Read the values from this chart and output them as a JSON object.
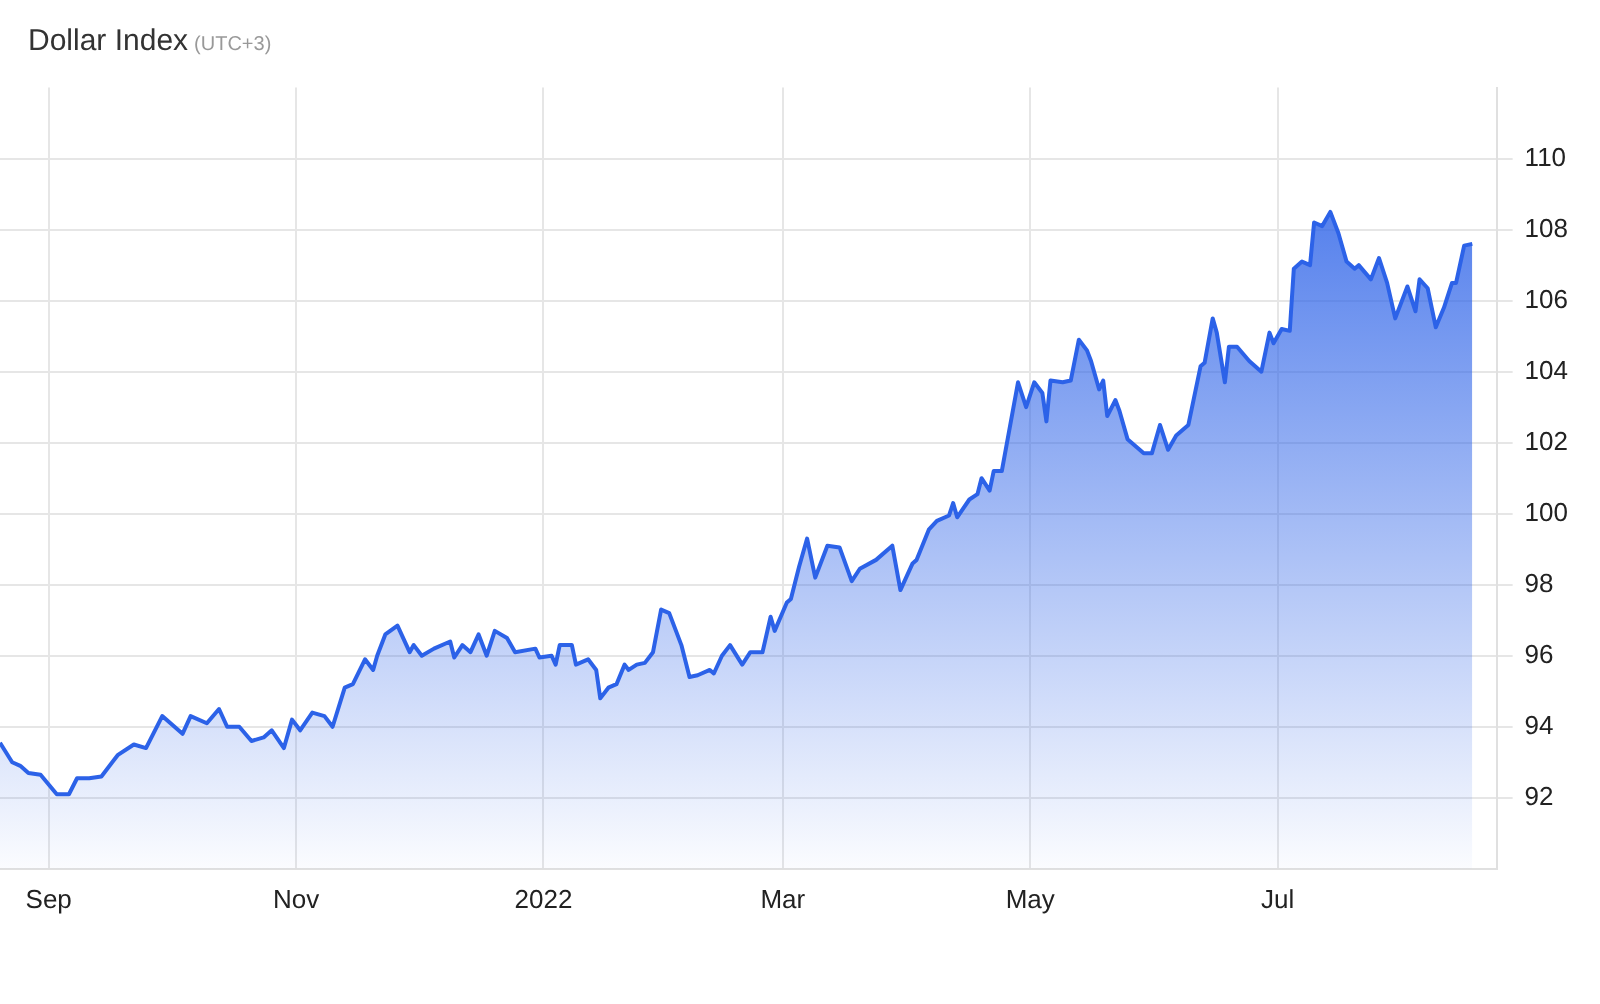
{
  "chart_data": {
    "type": "area",
    "title": "Dollar Index",
    "subtitle": "(UTC+3)",
    "x": [
      "2021-08-20",
      "2021-08-23",
      "2021-08-25",
      "2021-08-27",
      "2021-08-30",
      "2021-09-03",
      "2021-09-06",
      "2021-09-08",
      "2021-09-11",
      "2021-09-14",
      "2021-09-18",
      "2021-09-22",
      "2021-09-25",
      "2021-09-29",
      "2021-10-04",
      "2021-10-06",
      "2021-10-10",
      "2021-10-13",
      "2021-10-15",
      "2021-10-18",
      "2021-10-21",
      "2021-10-24",
      "2021-10-26",
      "2021-10-29",
      "2021-10-31",
      "2021-11-02",
      "2021-11-05",
      "2021-11-08",
      "2021-11-10",
      "2021-11-13",
      "2021-11-15",
      "2021-11-18",
      "2021-11-20",
      "2021-11-21",
      "2021-11-23",
      "2021-11-26",
      "2021-11-29",
      "2021-11-30",
      "2021-12-02",
      "2021-12-05",
      "2021-12-09",
      "2021-12-10",
      "2021-12-12",
      "2021-12-14",
      "2021-12-16",
      "2021-12-18",
      "2021-12-20",
      "2021-12-23",
      "2021-12-25",
      "2021-12-30",
      "2021-12-31",
      "2022-01-03",
      "2022-01-04",
      "2022-01-05",
      "2022-01-08",
      "2022-01-09",
      "2022-01-12",
      "2022-01-14",
      "2022-01-15",
      "2022-01-17",
      "2022-01-19",
      "2022-01-21",
      "2022-01-22",
      "2022-01-24",
      "2022-01-26",
      "2022-01-28",
      "2022-01-30",
      "2022-02-01",
      "2022-02-04",
      "2022-02-06",
      "2022-02-08",
      "2022-02-11",
      "2022-02-12",
      "2022-02-14",
      "2022-02-16",
      "2022-02-19",
      "2022-02-21",
      "2022-02-24",
      "2022-02-26",
      "2022-02-27",
      "2022-03-02",
      "2022-03-03",
      "2022-03-05",
      "2022-03-07",
      "2022-03-09",
      "2022-03-12",
      "2022-03-15",
      "2022-03-18",
      "2022-03-20",
      "2022-03-24",
      "2022-03-28",
      "2022-03-30",
      "2022-04-02",
      "2022-04-03",
      "2022-04-06",
      "2022-04-08",
      "2022-04-11",
      "2022-04-12",
      "2022-04-13",
      "2022-04-16",
      "2022-04-18",
      "2022-04-19",
      "2022-04-21",
      "2022-04-22",
      "2022-04-24",
      "2022-04-28",
      "2022-04-30",
      "2022-05-02",
      "2022-05-04",
      "2022-05-05",
      "2022-05-06",
      "2022-05-09",
      "2022-05-11",
      "2022-05-13",
      "2022-05-15",
      "2022-05-16",
      "2022-05-18",
      "2022-05-19",
      "2022-05-20",
      "2022-05-22",
      "2022-05-23",
      "2022-05-25",
      "2022-05-26",
      "2022-05-29",
      "2022-05-31",
      "2022-06-02",
      "2022-06-04",
      "2022-06-06",
      "2022-06-09",
      "2022-06-12",
      "2022-06-13",
      "2022-06-15",
      "2022-06-16",
      "2022-06-18",
      "2022-06-19",
      "2022-06-21",
      "2022-06-24",
      "2022-06-27",
      "2022-06-29",
      "2022-06-30",
      "2022-07-02",
      "2022-07-04",
      "2022-07-05",
      "2022-07-07",
      "2022-07-09",
      "2022-07-10",
      "2022-07-12",
      "2022-07-14",
      "2022-07-16",
      "2022-07-18",
      "2022-07-20",
      "2022-07-21",
      "2022-07-24",
      "2022-07-26",
      "2022-07-28",
      "2022-07-30",
      "2022-08-02",
      "2022-08-04",
      "2022-08-05",
      "2022-08-07",
      "2022-08-09",
      "2022-08-11",
      "2022-08-13",
      "2022-08-14",
      "2022-08-16",
      "2022-08-18"
    ],
    "series": [
      {
        "color": "#2c62e8",
        "values": [
          93.55,
          93.0,
          92.9,
          92.7,
          92.65,
          92.1,
          92.1,
          92.55,
          92.55,
          92.6,
          93.2,
          93.5,
          93.4,
          94.3,
          93.8,
          94.3,
          94.1,
          94.5,
          94.0,
          94.0,
          93.6,
          93.7,
          93.9,
          93.4,
          94.2,
          93.9,
          94.4,
          94.3,
          94.0,
          95.1,
          95.2,
          95.9,
          95.6,
          96.0,
          96.6,
          96.85,
          96.1,
          96.3,
          96.0,
          96.2,
          96.4,
          95.95,
          96.3,
          96.1,
          96.6,
          96.0,
          96.7,
          96.5,
          96.1,
          96.2,
          95.95,
          96.0,
          95.75,
          96.3,
          96.3,
          95.75,
          95.9,
          95.6,
          94.8,
          95.1,
          95.2,
          95.75,
          95.6,
          95.75,
          95.8,
          96.1,
          97.3,
          97.2,
          96.3,
          95.4,
          95.45,
          95.6,
          95.5,
          96.0,
          96.3,
          95.75,
          96.1,
          96.1,
          97.1,
          96.7,
          97.5,
          97.6,
          98.5,
          99.3,
          98.2,
          99.1,
          99.05,
          98.1,
          98.45,
          98.7,
          99.1,
          97.85,
          98.6,
          98.7,
          99.55,
          99.8,
          99.95,
          100.3,
          99.9,
          100.4,
          100.55,
          101.0,
          100.65,
          101.2,
          101.2,
          103.7,
          103.0,
          103.7,
          103.4,
          102.6,
          103.75,
          103.7,
          103.75,
          104.9,
          104.6,
          104.3,
          103.5,
          103.75,
          102.75,
          103.2,
          102.9,
          102.1,
          102.0,
          101.7,
          101.7,
          102.5,
          101.8,
          102.2,
          102.5,
          104.15,
          104.25,
          105.5,
          105.1,
          103.7,
          104.7,
          104.7,
          104.3,
          104.0,
          105.1,
          104.8,
          105.2,
          105.15,
          106.9,
          107.1,
          107.0,
          108.2,
          108.1,
          108.5,
          107.9,
          107.1,
          106.9,
          107.0,
          106.6,
          107.2,
          106.5,
          105.5,
          106.4,
          105.7,
          106.6,
          106.35,
          105.25,
          105.8,
          106.5,
          106.5,
          107.55,
          107.6
        ]
      }
    ],
    "xlim": [
      "2021-08-20",
      "2022-08-24"
    ],
    "xticks": [
      {
        "value": "2021-09-01",
        "label": "Sep"
      },
      {
        "value": "2021-11-01",
        "label": "Nov"
      },
      {
        "value": "2022-01-01",
        "label": "2022"
      },
      {
        "value": "2022-03-01",
        "label": "Mar"
      },
      {
        "value": "2022-05-01",
        "label": "May"
      },
      {
        "value": "2022-07-01",
        "label": "Jul"
      }
    ],
    "ylim": [
      90,
      112
    ],
    "yticks": [
      92,
      94,
      96,
      98,
      100,
      102,
      104,
      106,
      108,
      110
    ],
    "grid": true,
    "legend": false,
    "marker": "none",
    "line_style": "solid"
  }
}
